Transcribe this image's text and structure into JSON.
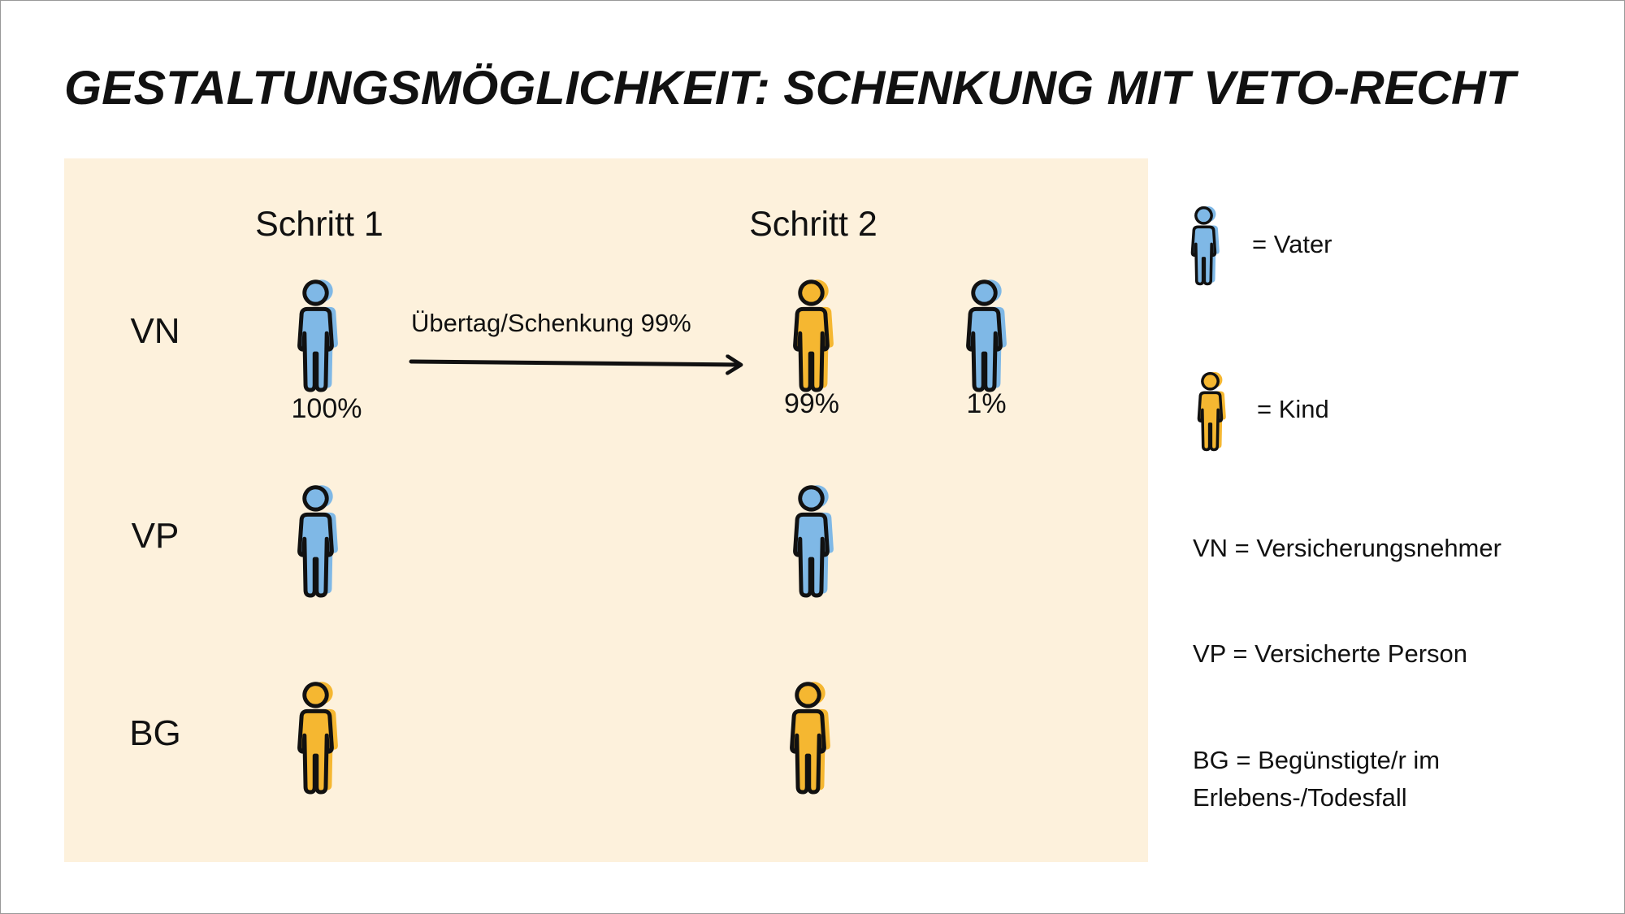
{
  "header": {
    "title": "GESTALTUNGSMÖGLICHKEIT: SCHENKUNG MIT VETO-RECHT"
  },
  "steps": [
    "Schritt 1",
    "Schritt 2"
  ],
  "roles": [
    "VN",
    "VP",
    "BG"
  ],
  "transfer": {
    "label": "Übertag/Schenkung 99%"
  },
  "shares": [
    "100%",
    "99%",
    "1%"
  ],
  "legend": {
    "vater": "= Vater",
    "kind": "= Kind",
    "notes": [
      "VN = Versicherungsnehmer",
      "VP = Versicherte Person",
      "BG = Begünstigte/r im",
      "Erlebens-/Todesfall"
    ]
  }
}
